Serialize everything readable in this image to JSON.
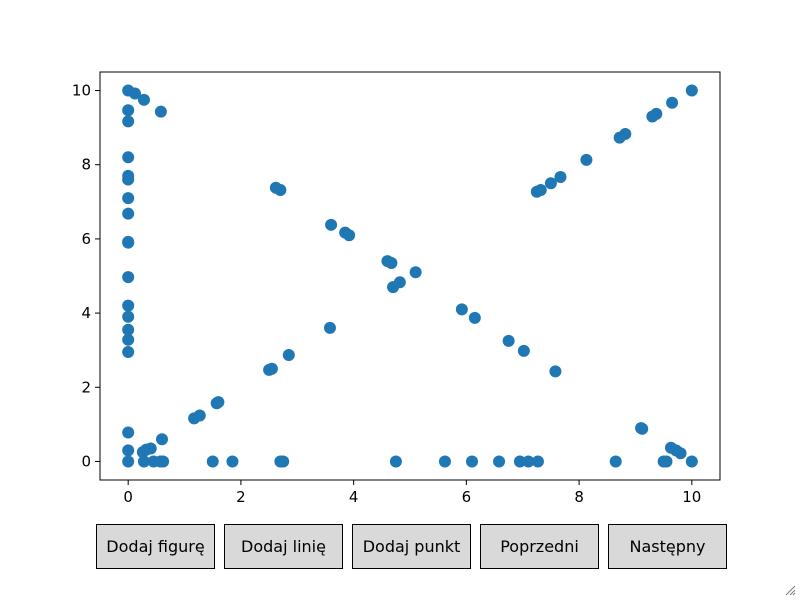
{
  "buttons": [
    {
      "name": "add-figure-button",
      "label": "Dodaj figurę"
    },
    {
      "name": "add-line-button",
      "label": "Dodaj linię"
    },
    {
      "name": "add-point-button",
      "label": "Dodaj punkt"
    },
    {
      "name": "previous-button",
      "label": "Poprzedni"
    },
    {
      "name": "next-button",
      "label": "Następny"
    }
  ],
  "chart_data": {
    "type": "scatter",
    "title": "",
    "xlabel": "",
    "ylabel": "",
    "xlim": [
      -0.5,
      10.5
    ],
    "ylim": [
      -0.5,
      10.5
    ],
    "xticks": [
      0,
      2,
      4,
      6,
      8,
      10
    ],
    "yticks": [
      0,
      2,
      4,
      6,
      8,
      10
    ],
    "grid": false,
    "color": "#1f77b4",
    "points": [
      [
        0,
        10
      ],
      [
        0.12,
        9.92
      ],
      [
        0.28,
        9.75
      ],
      [
        0.58,
        9.43
      ],
      [
        0,
        9.47
      ],
      [
        0,
        9.17
      ],
      [
        0,
        8.2
      ],
      [
        0,
        7.7
      ],
      [
        0,
        7.6
      ],
      [
        0,
        7.1
      ],
      [
        0,
        6.68
      ],
      [
        0,
        5.92
      ],
      [
        0,
        5.9
      ],
      [
        0,
        4.97
      ],
      [
        0,
        4.2
      ],
      [
        0,
        3.9
      ],
      [
        0,
        3.55
      ],
      [
        0,
        3.28
      ],
      [
        0,
        2.95
      ],
      [
        0,
        0.78
      ],
      [
        0,
        0.3
      ],
      [
        0,
        0
      ],
      [
        0.26,
        0.25
      ],
      [
        0.32,
        0.32
      ],
      [
        0.4,
        0.35
      ],
      [
        0.6,
        0.6
      ],
      [
        0.28,
        0
      ],
      [
        0.45,
        0
      ],
      [
        0.62,
        0
      ],
      [
        0.57,
        0
      ],
      [
        1.5,
        0
      ],
      [
        1.85,
        0
      ],
      [
        2.7,
        0
      ],
      [
        2.75,
        0
      ],
      [
        4.75,
        0
      ],
      [
        5.62,
        0
      ],
      [
        6.1,
        0
      ],
      [
        6.58,
        0
      ],
      [
        6.95,
        0
      ],
      [
        7.1,
        0
      ],
      [
        7.27,
        0
      ],
      [
        8.65,
        0
      ],
      [
        9.5,
        0
      ],
      [
        9.55,
        0
      ],
      [
        10,
        0
      ],
      [
        1.17,
        1.16
      ],
      [
        1.27,
        1.24
      ],
      [
        1.57,
        1.57
      ],
      [
        1.6,
        1.6
      ],
      [
        2.5,
        2.47
      ],
      [
        2.55,
        2.5
      ],
      [
        2.85,
        2.87
      ],
      [
        3.58,
        3.6
      ],
      [
        2.62,
        7.38
      ],
      [
        2.7,
        7.32
      ],
      [
        3.6,
        6.38
      ],
      [
        3.85,
        6.17
      ],
      [
        3.92,
        6.1
      ],
      [
        4.6,
        5.4
      ],
      [
        4.67,
        5.35
      ],
      [
        4.7,
        4.7
      ],
      [
        4.82,
        4.83
      ],
      [
        5.1,
        5.1
      ],
      [
        5.92,
        4.1
      ],
      [
        6.15,
        3.87
      ],
      [
        6.75,
        3.25
      ],
      [
        7.02,
        2.98
      ],
      [
        7.58,
        2.43
      ],
      [
        7.25,
        7.27
      ],
      [
        7.32,
        7.32
      ],
      [
        7.5,
        7.5
      ],
      [
        7.67,
        7.67
      ],
      [
        8.13,
        8.13
      ],
      [
        8.72,
        8.73
      ],
      [
        8.82,
        8.83
      ],
      [
        9.3,
        9.3
      ],
      [
        9.37,
        9.37
      ],
      [
        9.65,
        9.67
      ],
      [
        10,
        10
      ],
      [
        9.1,
        0.9
      ],
      [
        9.12,
        0.88
      ],
      [
        9.63,
        0.37
      ],
      [
        9.72,
        0.3
      ],
      [
        9.8,
        0.22
      ]
    ]
  }
}
